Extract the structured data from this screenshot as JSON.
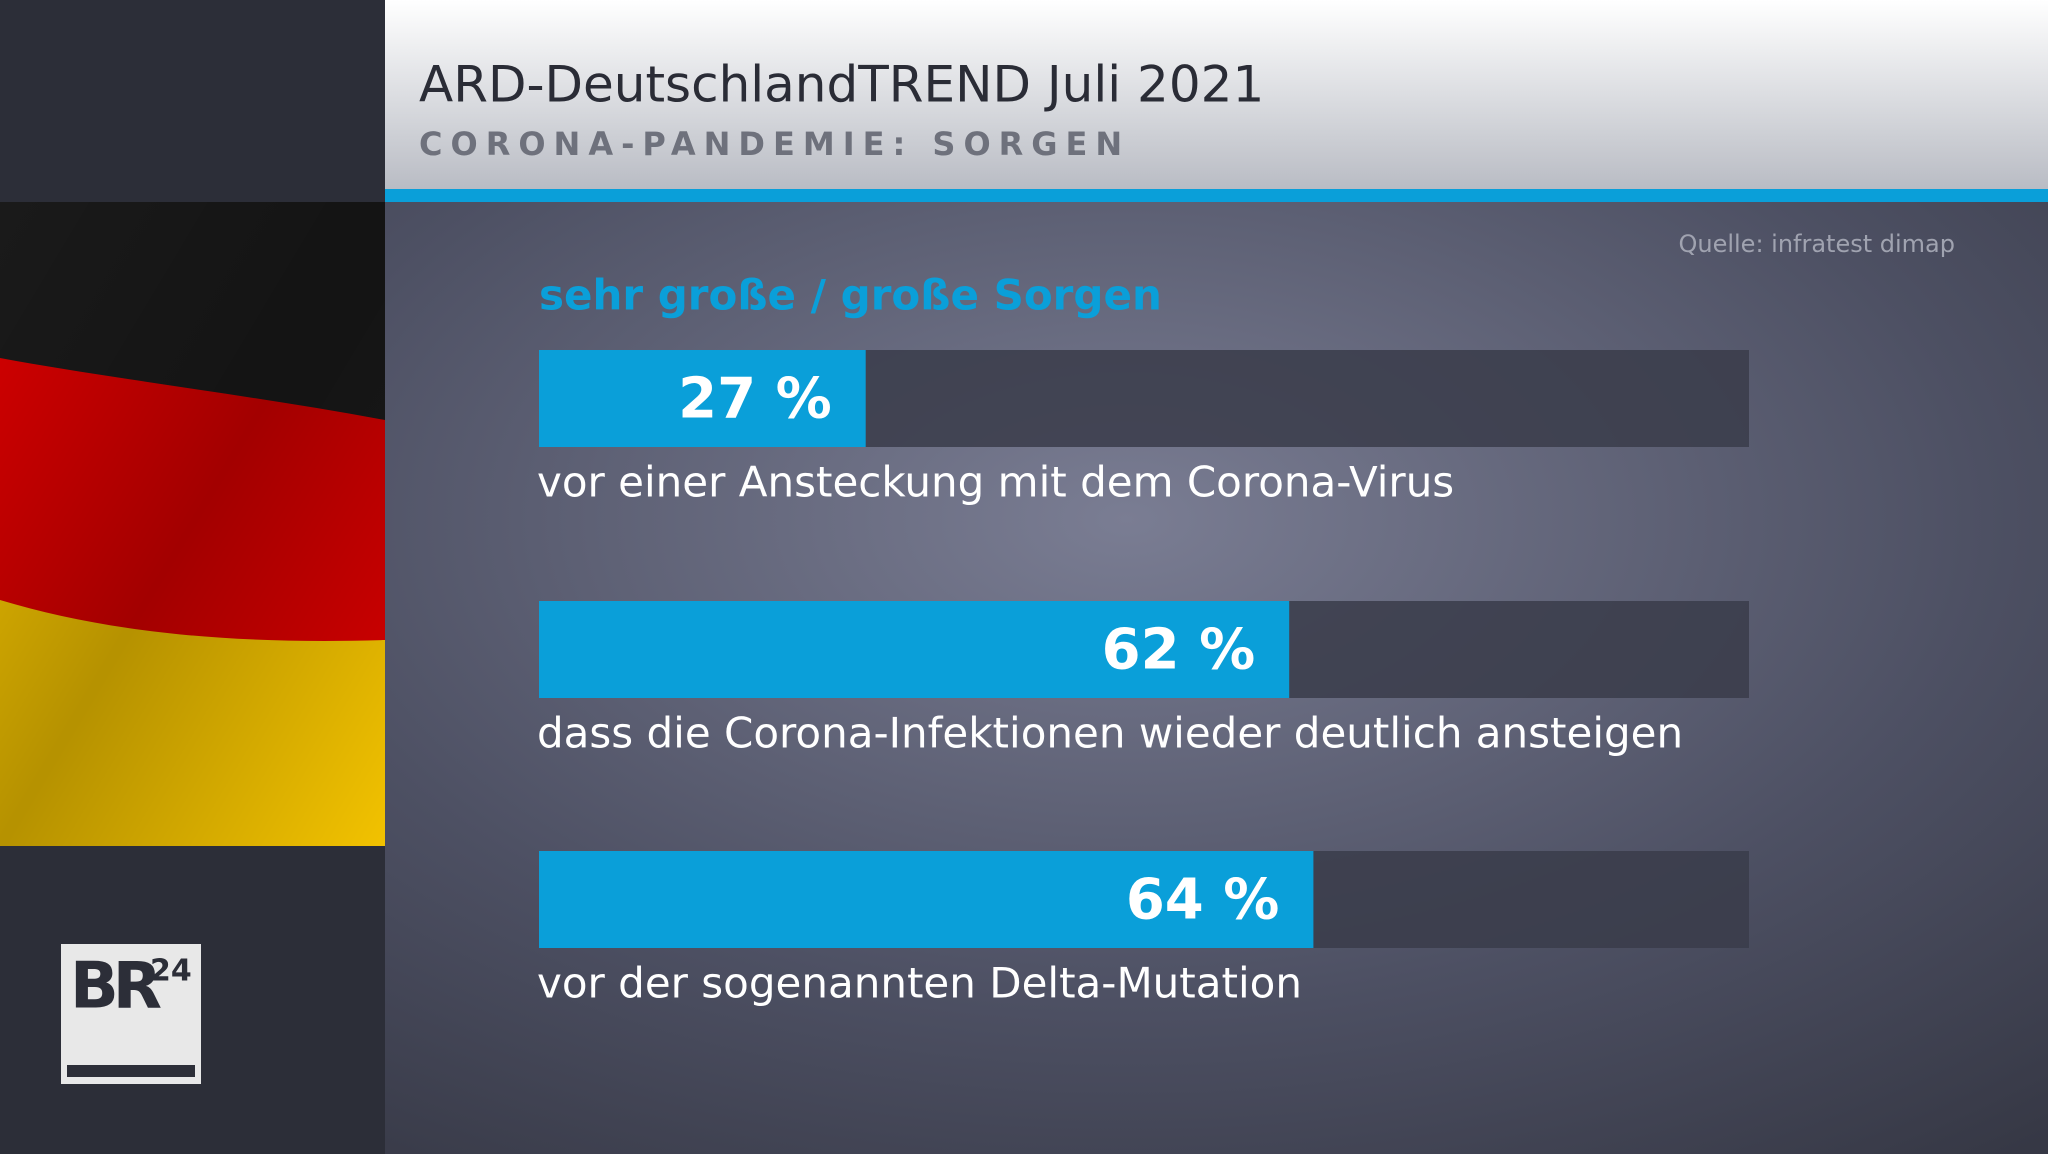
{
  "chart_data": {
    "type": "hbar",
    "title": "ARD-DeutschlandTREND Juli 2021",
    "subtitle": "CORONA-PANDEMIE: SORGEN",
    "source": "Quelle: infratest dimap",
    "categories": [
      "vor einer Ansteckung mit dem Corona-Virus",
      "dass die Corona-Infektionen wieder deutlich ansteigen",
      "vor der sogenannten Delta-Mutation"
    ],
    "series": [
      {
        "name": "sehr große / große Sorgen",
        "color": "#0a9fd9",
        "values": [
          27,
          62,
          64
        ],
        "value_labels": [
          "27 %",
          "62 %",
          "64 %"
        ]
      }
    ],
    "xlim": [
      0,
      100
    ]
  },
  "branding": {
    "logo": "BR",
    "logo_sup": "24"
  }
}
